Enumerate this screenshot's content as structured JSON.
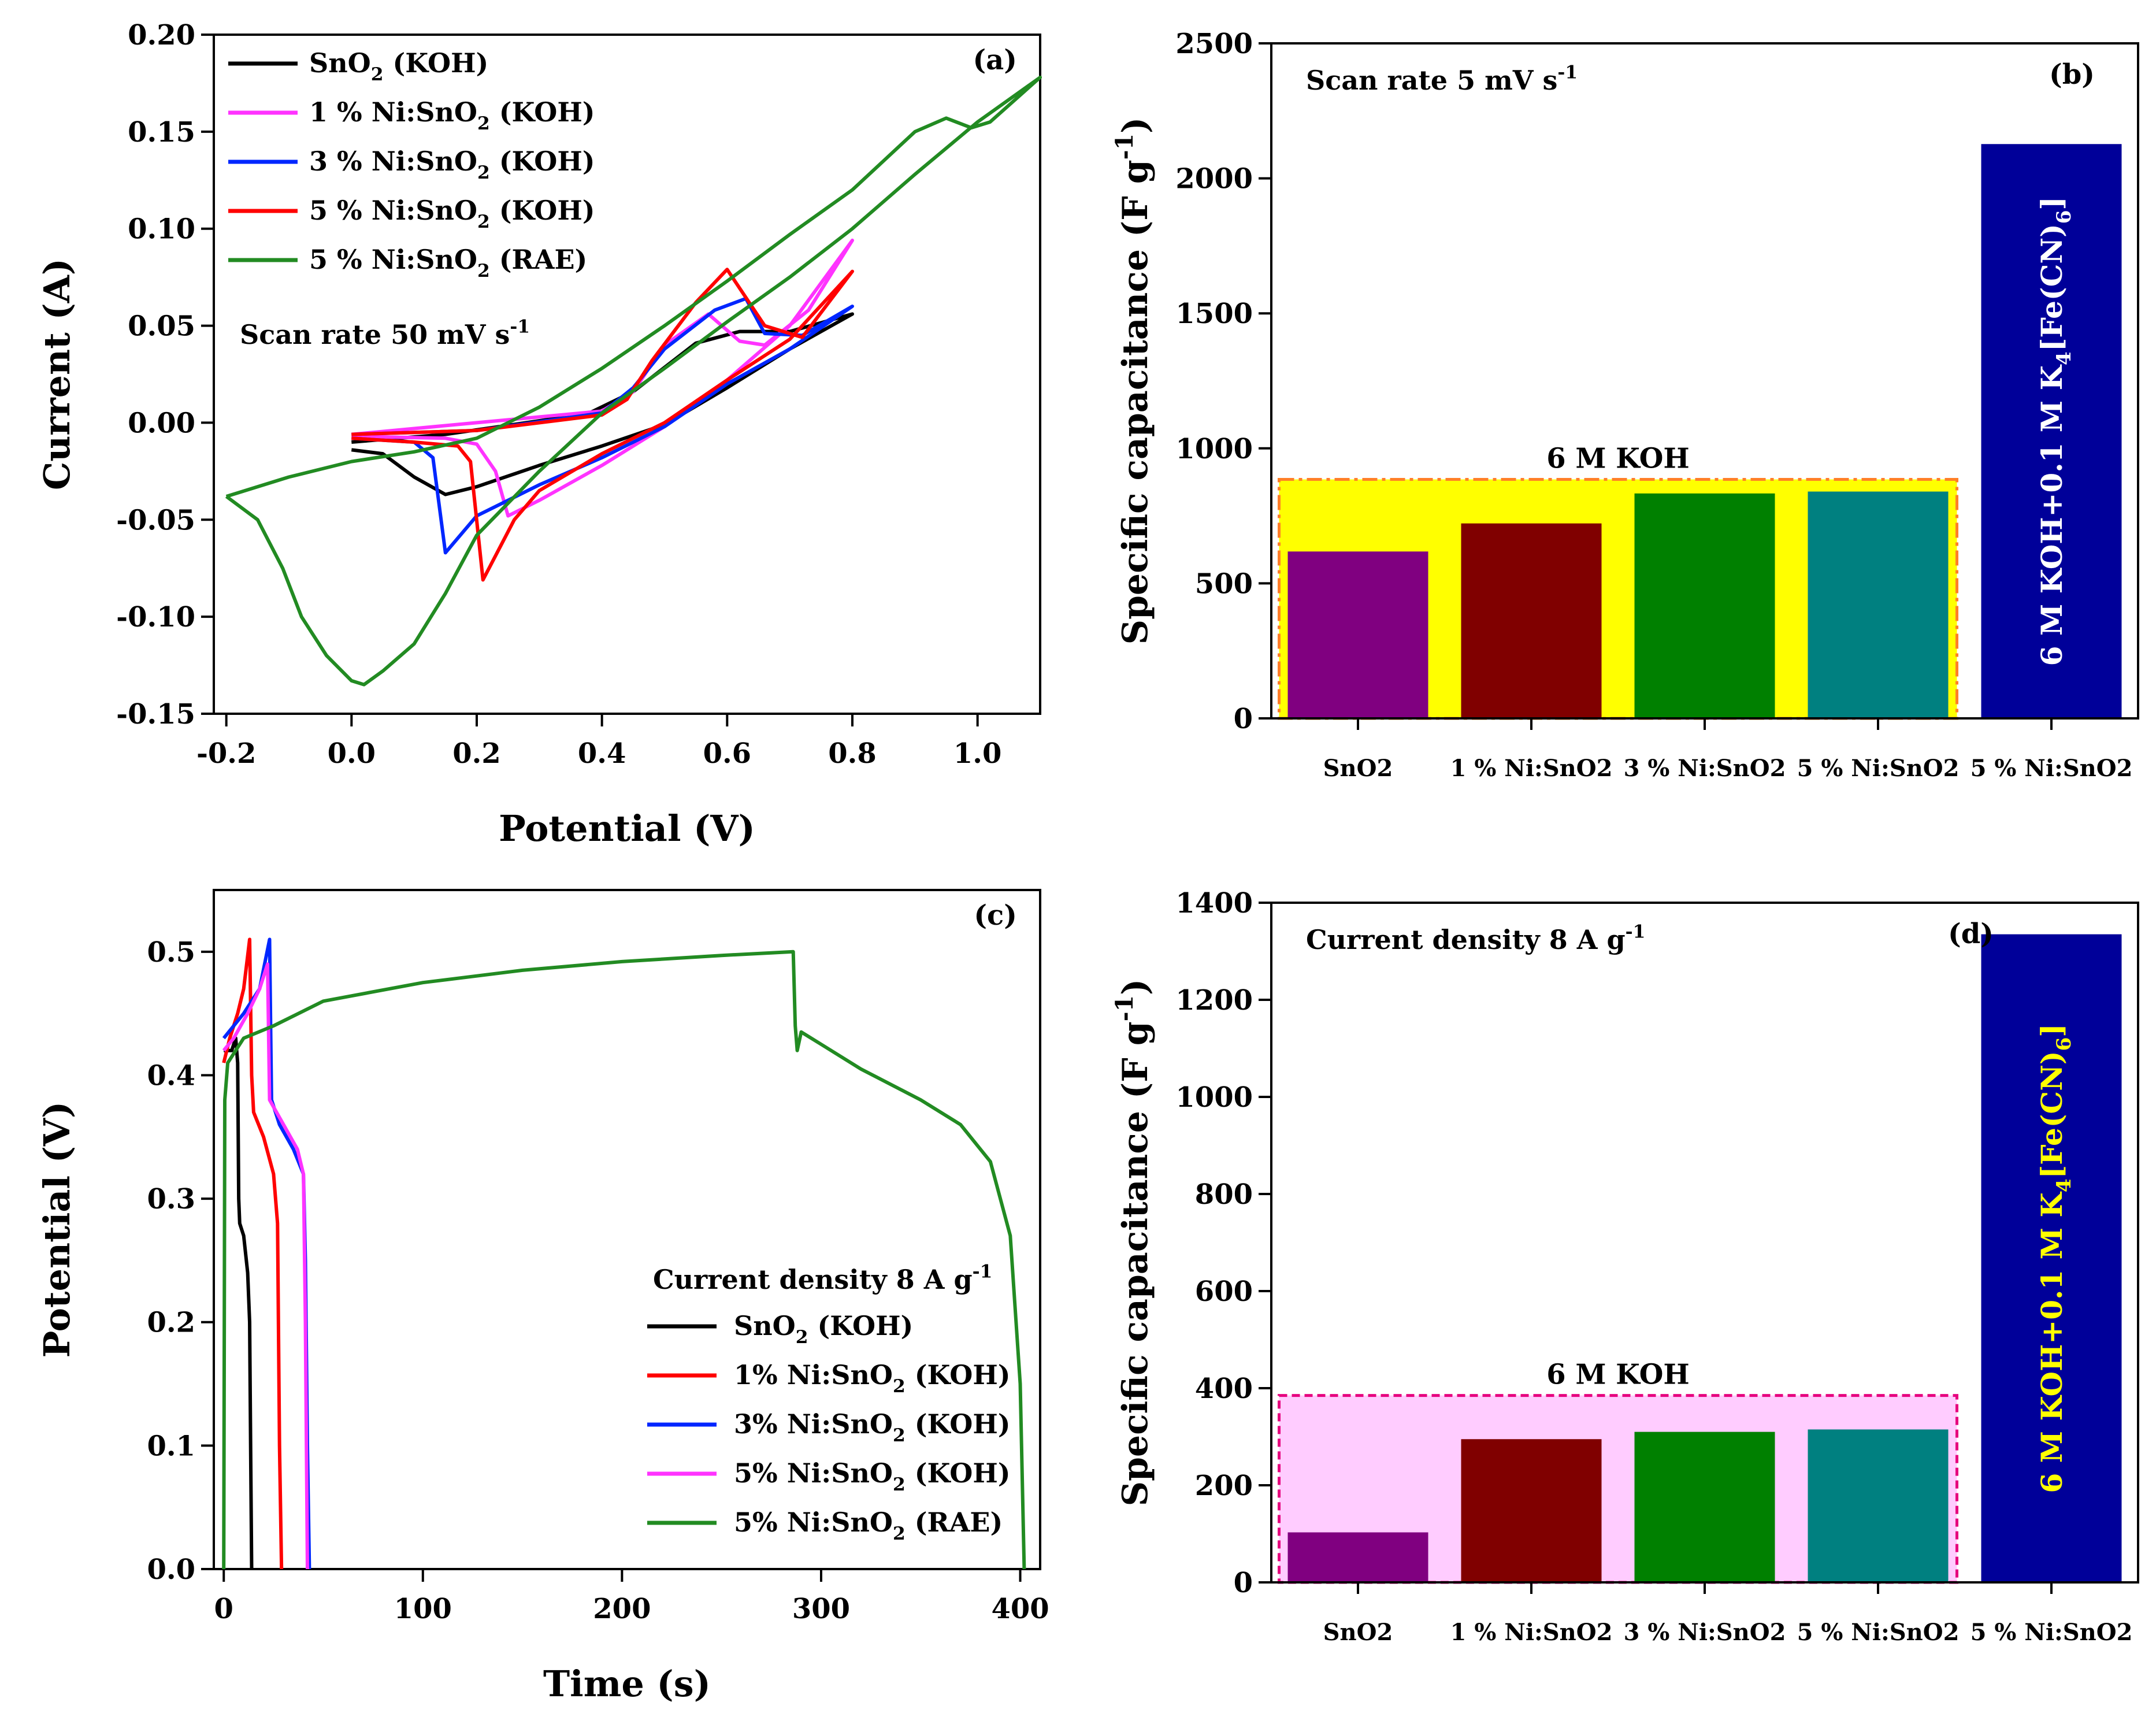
{
  "figure": {
    "panel_labels": [
      "(a)",
      "(b)",
      "(c)",
      "(d)"
    ]
  },
  "chart_data": [
    {
      "id": "a",
      "type": "line",
      "panel_label": "(a)",
      "xlabel": "Potential (V)",
      "ylabel": "Current (A)",
      "xlim": [
        -0.22,
        1.1
      ],
      "ylim": [
        -0.15,
        0.2
      ],
      "xticks": [
        "-0.2",
        "0.0",
        "0.2",
        "0.4",
        "0.6",
        "0.8",
        "1.0"
      ],
      "yticks": [
        "-0.15",
        "-0.10",
        "-0.05",
        "0.00",
        "0.05",
        "0.10",
        "0.15",
        "0.20"
      ],
      "annotation": "Scan rate 50 mV s-1",
      "legend_position": "top-left",
      "series": [
        {
          "name": "SnO2 (KOH)",
          "color": "#000000",
          "points": [
            [
              0.0,
              -0.014
            ],
            [
              0.05,
              -0.016
            ],
            [
              0.1,
              -0.028
            ],
            [
              0.15,
              -0.037
            ],
            [
              0.2,
              -0.033
            ],
            [
              0.3,
              -0.022
            ],
            [
              0.4,
              -0.012
            ],
            [
              0.5,
              -0.001
            ],
            [
              0.6,
              0.018
            ],
            [
              0.7,
              0.038
            ],
            [
              0.8,
              0.056
            ],
            [
              0.7,
              0.047
            ],
            [
              0.62,
              0.047
            ],
            [
              0.55,
              0.041
            ],
            [
              0.45,
              0.016
            ],
            [
              0.38,
              0.005
            ],
            [
              0.3,
              0.001
            ],
            [
              0.15,
              -0.006
            ],
            [
              0.0,
              -0.01
            ]
          ]
        },
        {
          "name": "1 % Ni:SnO2 (KOH)",
          "color": "#ff33ff",
          "points": [
            [
              0.0,
              -0.007
            ],
            [
              0.15,
              -0.008
            ],
            [
              0.2,
              -0.011
            ],
            [
              0.23,
              -0.025
            ],
            [
              0.25,
              -0.048
            ],
            [
              0.3,
              -0.04
            ],
            [
              0.4,
              -0.022
            ],
            [
              0.5,
              -0.002
            ],
            [
              0.6,
              0.022
            ],
            [
              0.7,
              0.05
            ],
            [
              0.8,
              0.094
            ],
            [
              0.73,
              0.058
            ],
            [
              0.66,
              0.04
            ],
            [
              0.62,
              0.042
            ],
            [
              0.57,
              0.056
            ],
            [
              0.5,
              0.04
            ],
            [
              0.45,
              0.016
            ],
            [
              0.4,
              0.006
            ],
            [
              0.2,
              0.0
            ],
            [
              0.0,
              -0.006
            ]
          ]
        },
        {
          "name": "3 % Ni:SnO2 (KOH)",
          "color": "#0026ff",
          "points": [
            [
              0.0,
              -0.008
            ],
            [
              0.1,
              -0.01
            ],
            [
              0.13,
              -0.018
            ],
            [
              0.15,
              -0.067
            ],
            [
              0.2,
              -0.048
            ],
            [
              0.3,
              -0.032
            ],
            [
              0.4,
              -0.018
            ],
            [
              0.5,
              -0.002
            ],
            [
              0.6,
              0.02
            ],
            [
              0.7,
              0.038
            ],
            [
              0.8,
              0.06
            ],
            [
              0.72,
              0.045
            ],
            [
              0.66,
              0.046
            ],
            [
              0.63,
              0.064
            ],
            [
              0.58,
              0.058
            ],
            [
              0.5,
              0.038
            ],
            [
              0.45,
              0.018
            ],
            [
              0.4,
              0.005
            ],
            [
              0.2,
              -0.004
            ],
            [
              0.0,
              -0.006
            ]
          ]
        },
        {
          "name": "5 % Ni:SnO2 (KOH)",
          "color": "#ff0000",
          "points": [
            [
              0.0,
              -0.008
            ],
            [
              0.1,
              -0.01
            ],
            [
              0.17,
              -0.012
            ],
            [
              0.19,
              -0.02
            ],
            [
              0.21,
              -0.081
            ],
            [
              0.26,
              -0.05
            ],
            [
              0.3,
              -0.035
            ],
            [
              0.4,
              -0.016
            ],
            [
              0.5,
              0.0
            ],
            [
              0.6,
              0.022
            ],
            [
              0.7,
              0.043
            ],
            [
              0.8,
              0.078
            ],
            [
              0.72,
              0.044
            ],
            [
              0.66,
              0.05
            ],
            [
              0.6,
              0.079
            ],
            [
              0.55,
              0.062
            ],
            [
              0.48,
              0.032
            ],
            [
              0.44,
              0.012
            ],
            [
              0.4,
              0.004
            ],
            [
              0.2,
              -0.004
            ],
            [
              0.0,
              -0.006
            ]
          ]
        },
        {
          "name": "5 % Ni:SnO2 (RAE)",
          "color": "#228b22",
          "points": [
            [
              -0.2,
              -0.038
            ],
            [
              -0.1,
              -0.028
            ],
            [
              0.0,
              -0.02
            ],
            [
              0.1,
              -0.015
            ],
            [
              0.2,
              -0.008
            ],
            [
              0.3,
              0.008
            ],
            [
              0.4,
              0.028
            ],
            [
              0.5,
              0.05
            ],
            [
              0.6,
              0.073
            ],
            [
              0.7,
              0.097
            ],
            [
              0.8,
              0.12
            ],
            [
              0.9,
              0.15
            ],
            [
              0.95,
              0.157
            ],
            [
              0.99,
              0.152
            ],
            [
              1.02,
              0.155
            ],
            [
              1.1,
              0.178
            ],
            [
              1.0,
              0.155
            ],
            [
              0.9,
              0.128
            ],
            [
              0.8,
              0.1
            ],
            [
              0.7,
              0.075
            ],
            [
              0.6,
              0.052
            ],
            [
              0.5,
              0.028
            ],
            [
              0.4,
              0.005
            ],
            [
              0.3,
              -0.025
            ],
            [
              0.2,
              -0.058
            ],
            [
              0.15,
              -0.088
            ],
            [
              0.1,
              -0.114
            ],
            [
              0.05,
              -0.128
            ],
            [
              0.02,
              -0.135
            ],
            [
              0.0,
              -0.133
            ],
            [
              -0.04,
              -0.12
            ],
            [
              -0.08,
              -0.1
            ],
            [
              -0.11,
              -0.075
            ],
            [
              -0.15,
              -0.05
            ],
            [
              -0.2,
              -0.038
            ]
          ]
        }
      ]
    },
    {
      "id": "b",
      "type": "bar",
      "panel_label": "(b)",
      "xlabel": "",
      "ylabel": "Specific capacitance (F g-1)",
      "ylim": [
        0,
        2500
      ],
      "yticks": [
        "0",
        "500",
        "1000",
        "1500",
        "2000",
        "2500"
      ],
      "annotation": "Scan rate 5 mV s-1",
      "group_label": "6 M KOH",
      "group_range": [
        0,
        3
      ],
      "group_top": 885,
      "group_fill": "#ffff00",
      "group_border": "#ff7f27",
      "bar_text": "6 M KOH+0.1 M K4[Fe(CN)6]",
      "bar_text_index": 4,
      "bar_text_color": "#ffffff",
      "categories": [
        "SnO2",
        "1 % Ni:SnO2",
        "3 % Ni:SnO2",
        "5 % Ni:SnO2",
        "5 % Ni:SnO2"
      ],
      "values": [
        618,
        722,
        833,
        840,
        2127
      ],
      "colors": [
        "#800080",
        "#800000",
        "#008000",
        "#008080",
        "#000099"
      ]
    },
    {
      "id": "c",
      "type": "line",
      "panel_label": "(c)",
      "xlabel": "Time (s)",
      "ylabel": "Potential (V)",
      "xlim": [
        -5,
        410
      ],
      "ylim": [
        0,
        0.55
      ],
      "xticks": [
        "0",
        "100",
        "200",
        "300",
        "400"
      ],
      "yticks": [
        "0.0",
        "0.1",
        "0.2",
        "0.3",
        "0.4",
        "0.5"
      ],
      "legend_title": "Current density 8 A g-1",
      "legend_position": "bottom-center",
      "series": [
        {
          "name": "SnO2 (KOH)",
          "color": "#000000",
          "points": [
            [
              0,
              0.42
            ],
            [
              2,
              0.42
            ],
            [
              4,
              0.42
            ],
            [
              6,
              0.43
            ],
            [
              7,
              0.41
            ],
            [
              7.5,
              0.3
            ],
            [
              8,
              0.28
            ],
            [
              10,
              0.27
            ],
            [
              12,
              0.24
            ],
            [
              13,
              0.2
            ],
            [
              13.5,
              0.1
            ],
            [
              14,
              0.0
            ]
          ]
        },
        {
          "name": "1% Ni:SnO2 (KOH)",
          "color": "#ff0000",
          "points": [
            [
              0,
              0.41
            ],
            [
              3,
              0.43
            ],
            [
              7,
              0.45
            ],
            [
              10,
              0.47
            ],
            [
              13,
              0.51
            ],
            [
              14,
              0.4
            ],
            [
              15,
              0.37
            ],
            [
              20,
              0.35
            ],
            [
              25,
              0.32
            ],
            [
              27,
              0.28
            ],
            [
              28,
              0.1
            ],
            [
              29,
              0.0
            ]
          ]
        },
        {
          "name": "3% Ni:SnO2 (KOH)",
          "color": "#0026ff",
          "points": [
            [
              0,
              0.43
            ],
            [
              5,
              0.44
            ],
            [
              10,
              0.45
            ],
            [
              18,
              0.47
            ],
            [
              23,
              0.51
            ],
            [
              24,
              0.38
            ],
            [
              28,
              0.36
            ],
            [
              35,
              0.34
            ],
            [
              40,
              0.32
            ],
            [
              41,
              0.25
            ],
            [
              42,
              0.1
            ],
            [
              43,
              0.0
            ]
          ]
        },
        {
          "name": "5% Ni:SnO2 (KOH)",
          "color": "#ff33ff",
          "points": [
            [
              0,
              0.42
            ],
            [
              5,
              0.43
            ],
            [
              12,
              0.45
            ],
            [
              18,
              0.47
            ],
            [
              22,
              0.49
            ],
            [
              23,
              0.38
            ],
            [
              30,
              0.36
            ],
            [
              37,
              0.34
            ],
            [
              40,
              0.32
            ],
            [
              41,
              0.2
            ],
            [
              42,
              0.0
            ]
          ]
        },
        {
          "name": "5% Ni:SnO2 (RAE)",
          "color": "#228b22",
          "points": [
            [
              0,
              0.0
            ],
            [
              0.5,
              0.38
            ],
            [
              2,
              0.41
            ],
            [
              10,
              0.43
            ],
            [
              25,
              0.44
            ],
            [
              50,
              0.46
            ],
            [
              100,
              0.475
            ],
            [
              150,
              0.485
            ],
            [
              200,
              0.492
            ],
            [
              250,
              0.497
            ],
            [
              286,
              0.5
            ],
            [
              287,
              0.44
            ],
            [
              288,
              0.42
            ],
            [
              290,
              0.435
            ],
            [
              300,
              0.425
            ],
            [
              320,
              0.405
            ],
            [
              350,
              0.38
            ],
            [
              370,
              0.36
            ],
            [
              385,
              0.33
            ],
            [
              395,
              0.27
            ],
            [
              400,
              0.15
            ],
            [
              402,
              0.0
            ]
          ]
        }
      ]
    },
    {
      "id": "d",
      "type": "bar",
      "panel_label": "(d)",
      "xlabel": "",
      "ylabel": "Specific capacitance (F g-1)",
      "ylim": [
        0,
        1400
      ],
      "yticks": [
        "0",
        "200",
        "400",
        "600",
        "800",
        "1000",
        "1200",
        "1400"
      ],
      "annotation": "Current density 8 A g-1",
      "group_label": "6 M KOH",
      "group_range": [
        0,
        3
      ],
      "group_top": 385,
      "group_fill": "#ffccff",
      "group_border": "#e6007e",
      "bar_text": "6 M KOH+0.1 M K4[Fe(CN)6]",
      "bar_text_index": 4,
      "bar_text_color": "#ffff00",
      "categories": [
        "SnO2",
        "1 % Ni:SnO2",
        "3 % Ni:SnO2",
        "5 % Ni:SnO2",
        "5 % Ni:SnO2"
      ],
      "values": [
        103,
        295,
        310,
        315,
        1335
      ],
      "colors": [
        "#800080",
        "#800000",
        "#008000",
        "#008080",
        "#000099"
      ]
    }
  ]
}
